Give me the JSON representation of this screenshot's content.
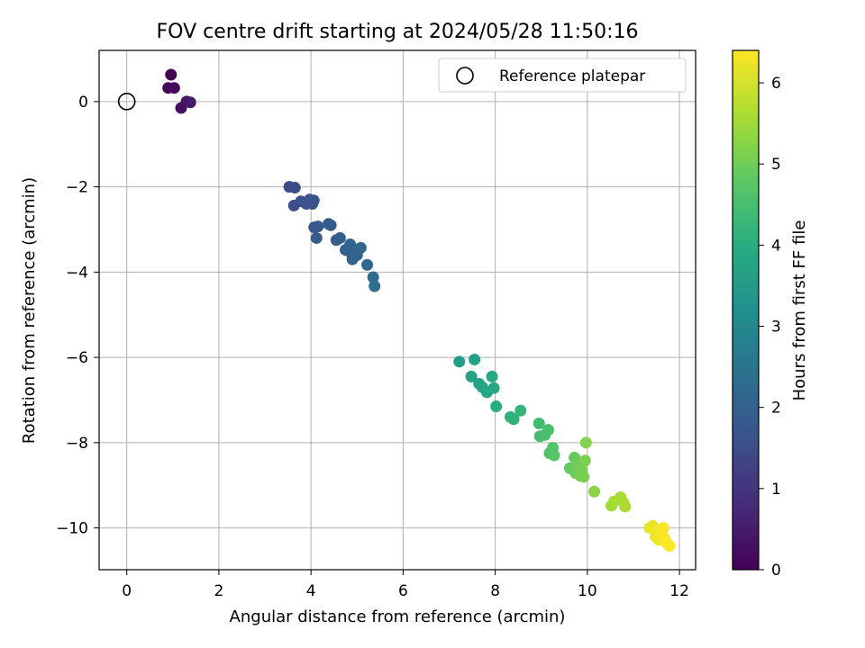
{
  "chart_data": {
    "type": "scatter",
    "title": "FOV centre drift starting at 2024/05/28 11:50:16",
    "xlabel": "Angular distance from reference (arcmin)",
    "ylabel": "Rotation from reference (arcmin)",
    "xlim": [
      -0.6,
      12.35
    ],
    "ylim": [
      -10.98,
      1.2
    ],
    "xticks": [
      0,
      2,
      4,
      6,
      8,
      10,
      12
    ],
    "yticks": [
      0,
      -2,
      -4,
      -6,
      -8,
      -10
    ],
    "xtick_labels": [
      "0",
      "2",
      "4",
      "6",
      "8",
      "10",
      "12"
    ],
    "ytick_labels": [
      "0",
      "−2",
      "−4",
      "−6",
      "−8",
      "−10"
    ],
    "grid": true,
    "colormap": "viridis",
    "colorbar": {
      "label": "Hours from first FF file",
      "range": [
        0,
        6.4
      ],
      "ticks": [
        0,
        1,
        2,
        3,
        4,
        5,
        6
      ],
      "tick_labels": [
        "0",
        "1",
        "2",
        "3",
        "4",
        "5",
        "6"
      ]
    },
    "legend": {
      "placement": "top-right",
      "label": "Reference platepar"
    },
    "reference": {
      "x": 0,
      "y": 0
    },
    "points": [
      {
        "x": 0.96,
        "y": 0.63,
        "h": 0.05
      },
      {
        "x": 0.9,
        "y": 0.32,
        "h": 0.1
      },
      {
        "x": 1.03,
        "y": 0.32,
        "h": 0.15
      },
      {
        "x": 1.18,
        "y": -0.15,
        "h": 0.25
      },
      {
        "x": 1.3,
        "y": 0.0,
        "h": 0.35
      },
      {
        "x": 1.38,
        "y": -0.02,
        "h": 0.45
      },
      {
        "x": 3.53,
        "y": -2.0,
        "h": 1.45
      },
      {
        "x": 3.65,
        "y": -2.02,
        "h": 1.5
      },
      {
        "x": 3.63,
        "y": -2.44,
        "h": 1.55
      },
      {
        "x": 3.78,
        "y": -2.34,
        "h": 1.6
      },
      {
        "x": 3.9,
        "y": -2.4,
        "h": 1.62
      },
      {
        "x": 3.97,
        "y": -2.3,
        "h": 1.65
      },
      {
        "x": 4.03,
        "y": -2.4,
        "h": 1.68
      },
      {
        "x": 4.06,
        "y": -2.32,
        "h": 1.7
      },
      {
        "x": 4.07,
        "y": -2.95,
        "h": 1.78
      },
      {
        "x": 4.15,
        "y": -2.93,
        "h": 1.8
      },
      {
        "x": 4.12,
        "y": -3.2,
        "h": 1.83
      },
      {
        "x": 4.38,
        "y": -2.87,
        "h": 1.85
      },
      {
        "x": 4.43,
        "y": -2.9,
        "h": 1.88
      },
      {
        "x": 4.55,
        "y": -3.25,
        "h": 1.92
      },
      {
        "x": 4.63,
        "y": -3.2,
        "h": 1.95
      },
      {
        "x": 4.75,
        "y": -3.48,
        "h": 2.0
      },
      {
        "x": 4.85,
        "y": -3.35,
        "h": 2.02
      },
      {
        "x": 4.87,
        "y": -3.55,
        "h": 2.05
      },
      {
        "x": 4.9,
        "y": -3.7,
        "h": 2.08
      },
      {
        "x": 5.0,
        "y": -3.6,
        "h": 2.1
      },
      {
        "x": 5.08,
        "y": -3.43,
        "h": 2.12
      },
      {
        "x": 5.22,
        "y": -3.83,
        "h": 2.18
      },
      {
        "x": 5.35,
        "y": -4.12,
        "h": 2.25
      },
      {
        "x": 5.38,
        "y": -4.33,
        "h": 2.3
      },
      {
        "x": 7.22,
        "y": -6.1,
        "h": 3.55
      },
      {
        "x": 7.55,
        "y": -6.05,
        "h": 3.65
      },
      {
        "x": 7.48,
        "y": -6.45,
        "h": 3.7
      },
      {
        "x": 7.65,
        "y": -6.62,
        "h": 3.75
      },
      {
        "x": 7.72,
        "y": -6.7,
        "h": 3.78
      },
      {
        "x": 7.82,
        "y": -6.82,
        "h": 3.82
      },
      {
        "x": 7.93,
        "y": -6.45,
        "h": 3.85
      },
      {
        "x": 7.97,
        "y": -6.72,
        "h": 3.88
      },
      {
        "x": 8.02,
        "y": -7.15,
        "h": 3.95
      },
      {
        "x": 8.33,
        "y": -7.4,
        "h": 4.1
      },
      {
        "x": 8.4,
        "y": -7.45,
        "h": 4.15
      },
      {
        "x": 8.55,
        "y": -7.25,
        "h": 4.2
      },
      {
        "x": 8.95,
        "y": -7.55,
        "h": 4.4
      },
      {
        "x": 8.97,
        "y": -7.85,
        "h": 4.45
      },
      {
        "x": 9.08,
        "y": -7.82,
        "h": 4.5
      },
      {
        "x": 9.15,
        "y": -7.7,
        "h": 4.55
      },
      {
        "x": 9.18,
        "y": -8.25,
        "h": 4.6
      },
      {
        "x": 9.25,
        "y": -8.12,
        "h": 4.65
      },
      {
        "x": 9.28,
        "y": -8.3,
        "h": 4.7
      },
      {
        "x": 9.62,
        "y": -8.6,
        "h": 4.85
      },
      {
        "x": 9.72,
        "y": -8.35,
        "h": 4.9
      },
      {
        "x": 9.75,
        "y": -8.72,
        "h": 4.95
      },
      {
        "x": 9.8,
        "y": -8.5,
        "h": 5.0
      },
      {
        "x": 9.82,
        "y": -8.6,
        "h": 5.02
      },
      {
        "x": 9.85,
        "y": -8.78,
        "h": 5.05
      },
      {
        "x": 9.88,
        "y": -8.65,
        "h": 5.08
      },
      {
        "x": 9.92,
        "y": -8.8,
        "h": 5.1
      },
      {
        "x": 9.95,
        "y": -8.42,
        "h": 5.12
      },
      {
        "x": 9.97,
        "y": -8.0,
        "h": 5.2
      },
      {
        "x": 10.15,
        "y": -9.15,
        "h": 5.3
      },
      {
        "x": 10.52,
        "y": -9.48,
        "h": 5.5
      },
      {
        "x": 10.58,
        "y": -9.38,
        "h": 5.55
      },
      {
        "x": 10.72,
        "y": -9.28,
        "h": 5.58
      },
      {
        "x": 10.78,
        "y": -9.4,
        "h": 5.6
      },
      {
        "x": 10.82,
        "y": -9.5,
        "h": 5.62
      },
      {
        "x": 11.35,
        "y": -10.0,
        "h": 6.2
      },
      {
        "x": 11.42,
        "y": -9.95,
        "h": 6.22
      },
      {
        "x": 11.48,
        "y": -10.2,
        "h": 6.25
      },
      {
        "x": 11.5,
        "y": -10.1,
        "h": 6.28
      },
      {
        "x": 11.55,
        "y": -10.28,
        "h": 6.3
      },
      {
        "x": 11.6,
        "y": -10.05,
        "h": 6.32
      },
      {
        "x": 11.62,
        "y": -10.18,
        "h": 6.34
      },
      {
        "x": 11.65,
        "y": -10.0,
        "h": 6.35
      },
      {
        "x": 11.68,
        "y": -10.25,
        "h": 6.37
      },
      {
        "x": 11.72,
        "y": -10.35,
        "h": 6.38
      },
      {
        "x": 11.78,
        "y": -10.42,
        "h": 6.4
      }
    ]
  }
}
